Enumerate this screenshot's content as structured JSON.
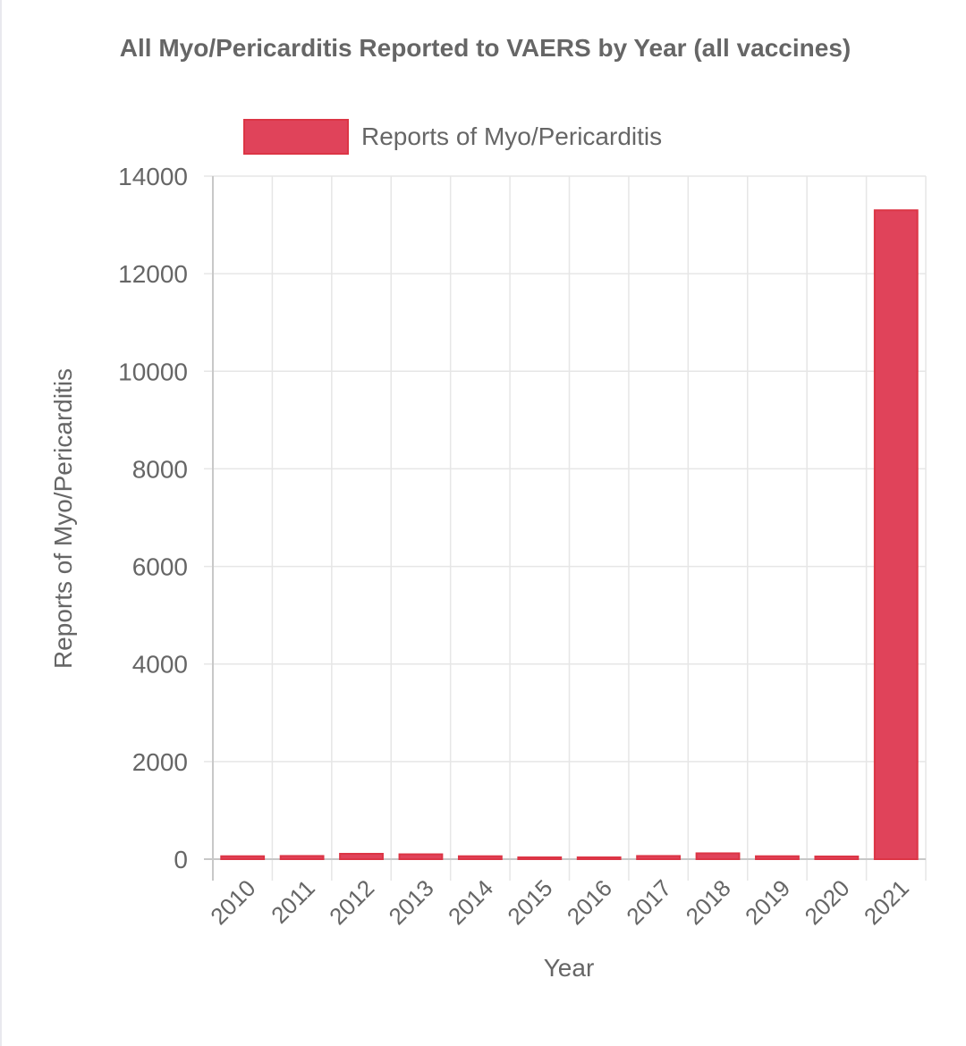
{
  "colors": {
    "bar_fill": "#e0435a",
    "bar_border": "#dc3545",
    "grid": "#e6e6e6",
    "axis": "#c8c8c8",
    "text": "#666666"
  },
  "chart_data": {
    "type": "bar",
    "title": "All Myo/Pericarditis Reported to VAERS by Year (all vaccines)",
    "xlabel": "Year",
    "ylabel": "Reports of Myo/Pericarditis",
    "legend_position": "top",
    "grid": true,
    "ylim": [
      0,
      14000
    ],
    "yticks": [
      0,
      2000,
      4000,
      6000,
      8000,
      10000,
      12000,
      14000
    ],
    "categories": [
      "2010",
      "2011",
      "2012",
      "2013",
      "2014",
      "2015",
      "2016",
      "2017",
      "2018",
      "2019",
      "2020",
      "2021"
    ],
    "series": [
      {
        "name": "Reports of Myo/Pericarditis",
        "values": [
          60,
          65,
          110,
          100,
          60,
          20,
          35,
          65,
          120,
          60,
          55,
          13300
        ]
      }
    ]
  }
}
